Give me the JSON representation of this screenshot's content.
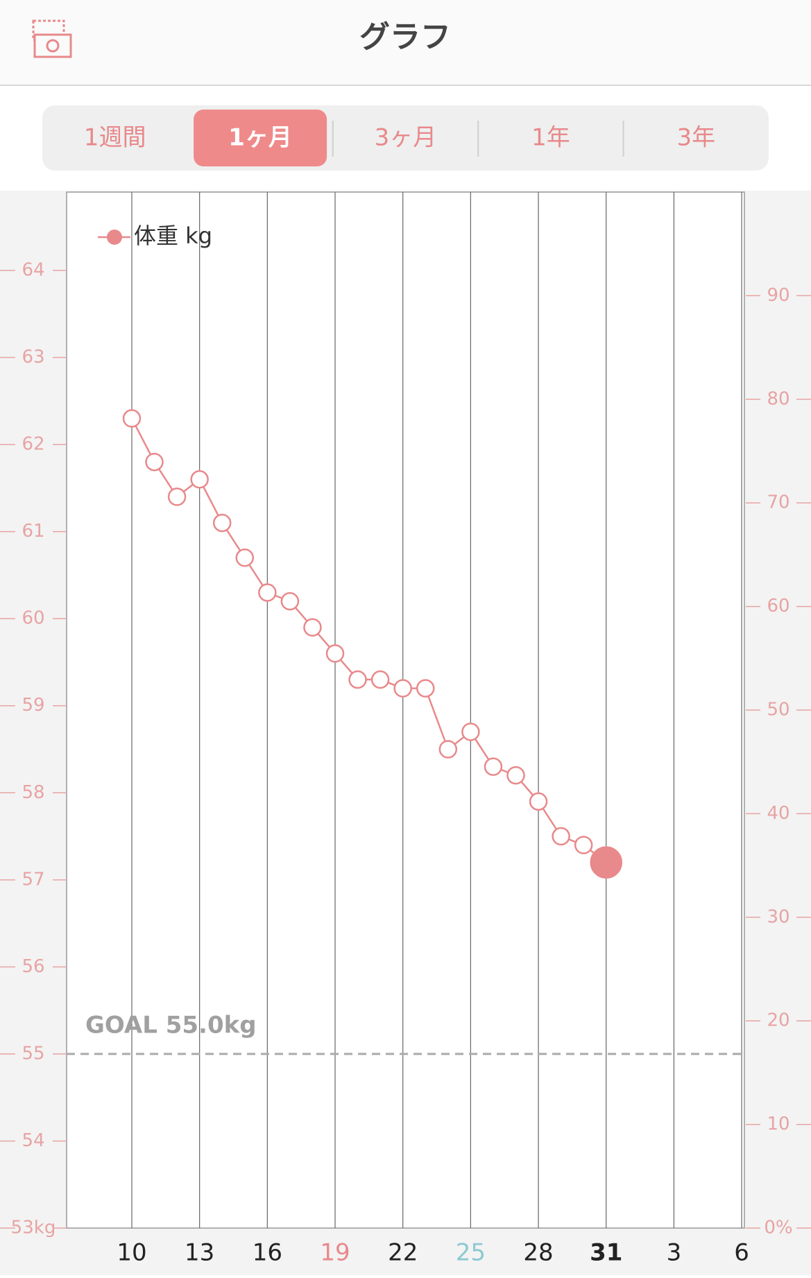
{
  "header": {
    "title": "グラフ"
  },
  "tabs": {
    "items": [
      "1週間",
      "1ヶ月",
      "3ヶ月",
      "1年",
      "3年"
    ],
    "active": 1
  },
  "chart_data": {
    "type": "line",
    "categories": [
      null,
      null,
      null,
      "10",
      null,
      null,
      "13",
      null,
      null,
      "16",
      null,
      null,
      "19",
      null,
      null,
      "22",
      null,
      null,
      "25",
      null,
      null,
      "28",
      null,
      null,
      "31",
      null,
      null,
      "3",
      null,
      null,
      "6"
    ],
    "series": [
      {
        "name": "体重 kg",
        "color": "#e8898b",
        "values": [
          null,
          null,
          null,
          62.3,
          61.8,
          61.4,
          61.6,
          61.1,
          60.7,
          60.3,
          60.2,
          59.9,
          59.6,
          59.3,
          59.3,
          59.2,
          59.2,
          58.5,
          58.7,
          58.3,
          58.2,
          57.9,
          57.5,
          57.4,
          57.2,
          null,
          null,
          null,
          null,
          null,
          null
        ]
      }
    ],
    "ylim": [
      53,
      64.9
    ],
    "yticks": [
      {
        "value": 53,
        "label": "53kg"
      },
      54,
      55,
      56,
      57,
      58,
      59,
      60,
      61,
      62,
      63,
      64
    ],
    "y2lim": [
      0,
      100
    ],
    "y2ticks": [
      {
        "value": 0,
        "label": "0%"
      },
      10,
      20,
      30,
      40,
      50,
      60,
      70,
      80,
      90
    ],
    "grid": true,
    "legend": "upper left",
    "goal": {
      "value": 55,
      "label": "GOAL 55.0kg"
    }
  }
}
